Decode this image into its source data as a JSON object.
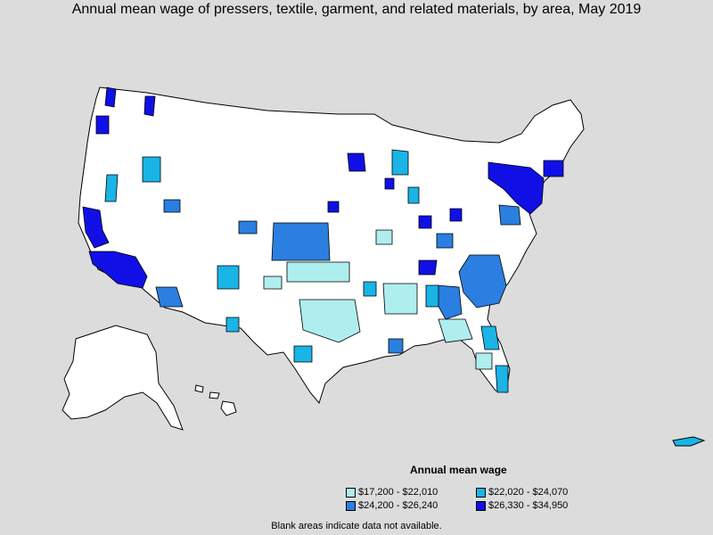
{
  "title": "Annual mean wage of pressers, textile, garment, and related materials, by area, May 2019",
  "legend": {
    "title": "Annual mean wage",
    "items": [
      {
        "label": "$17,200 - $22,010",
        "color": "#aeeeee"
      },
      {
        "label": "$22,020 - $24,070",
        "color": "#1ab4e6"
      },
      {
        "label": "$24,200 - $26,240",
        "color": "#2a7fe0"
      },
      {
        "label": "$26,330 - $34,950",
        "color": "#1010e6"
      }
    ]
  },
  "footnote": "Blank areas indicate data not available.",
  "colors": {
    "background": "#dcdcdc",
    "land": "#ffffff",
    "border": "#000000"
  }
}
